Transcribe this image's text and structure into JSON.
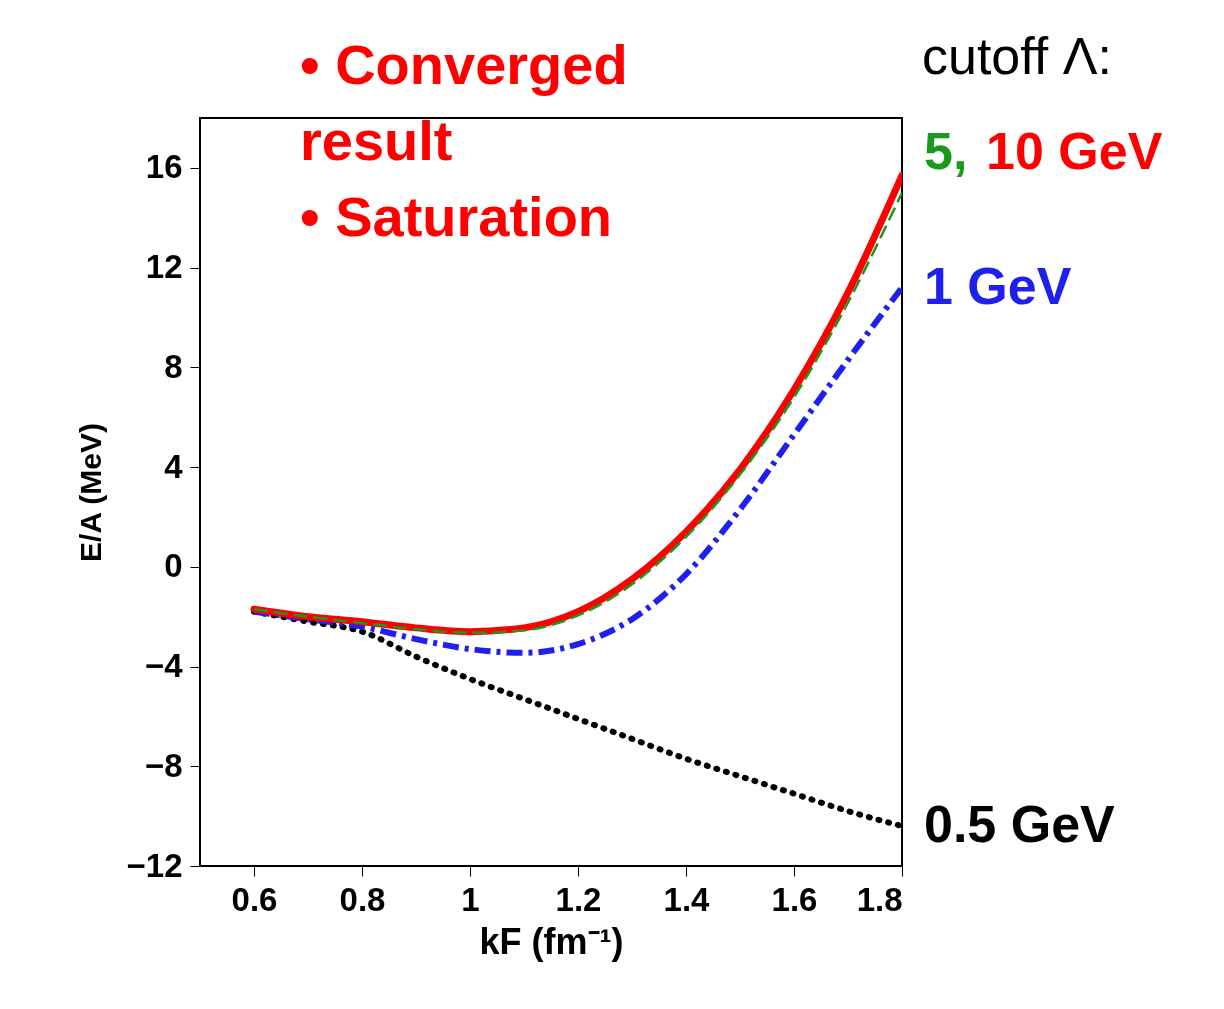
{
  "chart_data": {
    "type": "line",
    "xlabel": "kF (fm⁻¹)",
    "ylabel": "E/A (MeV)",
    "x": [
      0.6,
      0.7,
      0.8,
      0.9,
      1.0,
      1.1,
      1.2,
      1.3,
      1.4,
      1.5,
      1.6,
      1.7,
      1.8
    ],
    "series": [
      {
        "name": "5,",
        "color": "#1a9a1a",
        "line_style": "dashed",
        "values": [
          -1.7,
          -2.0,
          -2.25,
          -2.5,
          -2.65,
          -2.55,
          -1.95,
          -0.7,
          1.2,
          3.7,
          6.8,
          10.6,
          15.0
        ]
      },
      {
        "name": "10 GeV",
        "color": "#ff0000",
        "line_style": "solid",
        "values": [
          -1.7,
          -2.0,
          -2.2,
          -2.45,
          -2.6,
          -2.45,
          -1.8,
          -0.5,
          1.4,
          3.9,
          7.1,
          11.0,
          15.7
        ]
      },
      {
        "name": "1 GeV",
        "color": "#2020ee",
        "line_style": "dashdot",
        "values": [
          -1.8,
          -2.1,
          -2.4,
          -2.9,
          -3.3,
          -3.45,
          -3.1,
          -2.1,
          -0.3,
          2.3,
          5.3,
          8.3,
          11.2
        ]
      },
      {
        "name": "0.5 GeV",
        "color": "#000000",
        "line_style": "dotted",
        "values": [
          -1.8,
          -2.2,
          -2.6,
          -3.6,
          -4.5,
          -5.3,
          -6.1,
          -6.9,
          -7.7,
          -8.4,
          -9.1,
          -9.8,
          -10.4
        ]
      }
    ],
    "xlim": [
      0.5,
      1.8
    ],
    "ylim": [
      -12,
      18
    ],
    "xticks": [
      0.6,
      0.8,
      1,
      1.2,
      1.4,
      1.6,
      1.8
    ],
    "yticks": [
      -12,
      -8,
      -4,
      0,
      4,
      8,
      12,
      16
    ],
    "grid": false,
    "annotations": [
      "• Converged\n  result\n\n• Saturation",
      "cutoff Λ:"
    ]
  }
}
